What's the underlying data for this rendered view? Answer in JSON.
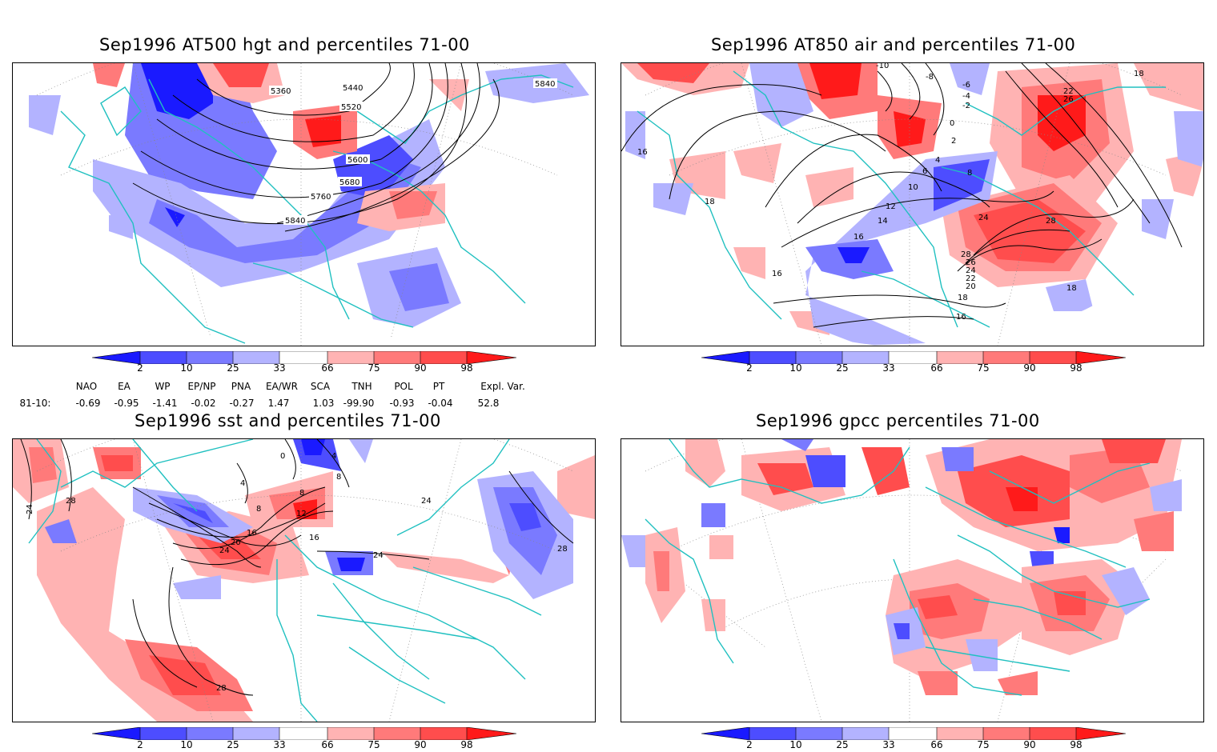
{
  "panels": [
    {
      "title": "Sep1996  AT500 hgt and percentiles 71-00",
      "contour_labels": [
        "5360",
        "5440",
        "5520",
        "5600",
        "5680",
        "5760",
        "5840",
        "5840"
      ]
    },
    {
      "title": "Sep1996  AT850 air and percentiles 71-00",
      "contour_labels": [
        "-10",
        "-8",
        "-6",
        "-4",
        "-2",
        "0",
        "2",
        "4",
        "6",
        "8",
        "10",
        "12",
        "14",
        "16",
        "16",
        "16",
        "18",
        "18",
        "18",
        "20",
        "22",
        "24",
        "26",
        "28",
        "28",
        "24",
        "26",
        "22",
        "18",
        "16"
      ]
    },
    {
      "title": "Sep1996  sst and percentiles 71-00",
      "contour_labels": [
        "24",
        "28",
        "4",
        "8",
        "8",
        "12",
        "16",
        "20",
        "24",
        "16",
        "24",
        "24",
        "28",
        "28",
        "0",
        "4",
        "8"
      ]
    },
    {
      "title": "Sep1996  gpcc percentiles 71-00",
      "contour_labels": []
    }
  ],
  "colorbar": {
    "labels": [
      "2",
      "10",
      "25",
      "33",
      "66",
      "75",
      "90",
      "98"
    ],
    "colors": {
      "dark_blue": "#1a1aff",
      "blue": "#4d4dff",
      "mid_blue": "#7a7aff",
      "light_blue": "#b3b3ff",
      "light_red": "#ffb3b3",
      "mid_red": "#ff7a7a",
      "red": "#ff4d4d",
      "dark_red": "#ff1a1a"
    }
  },
  "teleconnections": {
    "headers": [
      "NAO",
      "EA",
      "WP",
      "EP/NP",
      "PNA",
      "EA/WR",
      "SCA",
      "TNH",
      "POL",
      "PT",
      "Expl. Var."
    ],
    "row_label": "81-10:",
    "values": [
      "-0.69",
      "-0.95",
      "-1.41",
      "-0.02",
      "-0.27",
      "1.47",
      "1.03",
      "-99.90",
      "-0.93",
      "-0.04",
      "52.8"
    ]
  },
  "colors": {
    "coast": "#20c0c0",
    "grid": "#888888",
    "contour": "#000000"
  }
}
